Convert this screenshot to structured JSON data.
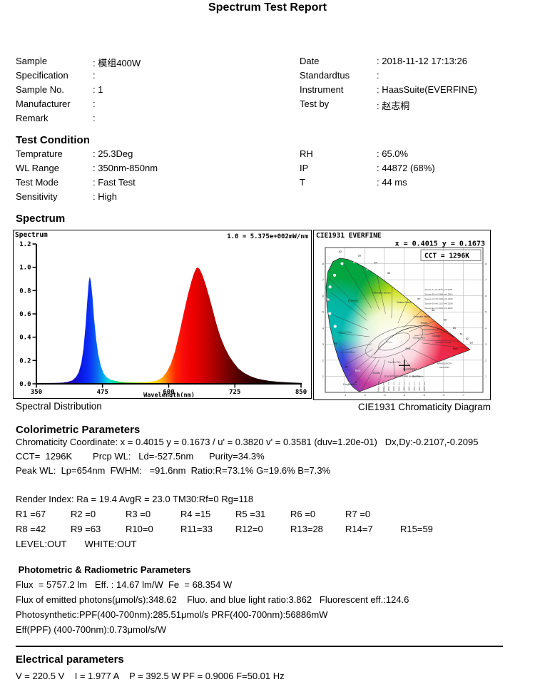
{
  "title": "Spectrum Test Report",
  "info": {
    "left": [
      {
        "label": "Sample",
        "value": ": 模组400W"
      },
      {
        "label": "Specification",
        "value": ":"
      },
      {
        "label": "Sample No.",
        "value": ": 1"
      },
      {
        "label": "Manufacturer",
        "value": ":"
      },
      {
        "label": "Remark",
        "value": ":"
      }
    ],
    "right": [
      {
        "label": "Date",
        "value": ": 2018-11-12 17:13:26"
      },
      {
        "label": "Standardtus",
        "value": ":"
      },
      {
        "label": "Instrument",
        "value": ": HaasSuite(EVERFINE)"
      },
      {
        "label": "Test by",
        "value": ": 赵志桐"
      }
    ]
  },
  "test_condition": {
    "heading": "Test Condition",
    "left": [
      {
        "label": "Temprature",
        "value": ": 25.3Deg"
      },
      {
        "label": "WL Range",
        "value": ": 350nm-850nm"
      },
      {
        "label": "Test Mode",
        "value": ": Fast Test"
      },
      {
        "label": "Sensitivity",
        "value": ": High"
      }
    ],
    "right": [
      {
        "label": "RH",
        "value": ": 65.0%"
      },
      {
        "label": "IP",
        "value": ": 44872 (68%)"
      },
      {
        "label": "T",
        "value": ": 44 ms"
      }
    ]
  },
  "spectrum_section": {
    "heading": "Spectrum",
    "left_caption": "Spectral Distribution",
    "right_caption": "CIE1931 Chromaticity Diagram"
  },
  "colorimetric": {
    "heading": "Colorimetric Parameters",
    "line1": "Chromaticity Coordinate: x = 0.4015 y = 0.1673 / u' = 0.3820 v' = 0.3581 (duv=1.20e-01)   Dx,Dy:-0.2107,-0.2095",
    "line2": "CCT=  1296K        Prcp WL:   Ld=-527.5nm      Purity=34.3%",
    "line3": "Peak WL:  Lp=654nm  FWHM:   =91.6nm  Ratio:R=73.1% G=19.6% B=7.3%",
    "render_index": "Render Index: Ra = 19.4 AvgR = 23.0 TM30:Rf=0 Rg=118",
    "r_row1": [
      "R1 =67",
      "R2 =0",
      "R3 =0",
      "R4 =15",
      "R5 =31",
      "R6 =0",
      "R7 =0"
    ],
    "r_row2": [
      "R8 =42",
      "R9 =63",
      "R10=0",
      "R11=33",
      "R12=0",
      "R13=28",
      "R14=7",
      "R15=59"
    ],
    "level_line": "LEVEL:OUT       WHITE:OUT"
  },
  "photometric": {
    "heading": " Photometric & Radiometric Parameters",
    "lines": [
      "Flux  = 5757.2 lm   Eff. : 14.67 lm/W  Fe  = 68.354 W",
      "Flux of emitted photons(μmol/s):348.62    Fluo. and blue light ratio:3.862   Fluorescent eff.:124.6",
      "Photosynthetic:PPF(400-700nm):285.51μmol/s PRF(400-700nm):56886mW",
      "Eff(PPF) (400-700nm):0.73μmol/s/W"
    ]
  },
  "electrical": {
    "heading": "Electrical parameters",
    "line1": "V = 220.5 V    I = 1.977 A    P = 392.5 W PF = 0.9006 F=50.01 Hz"
  },
  "chart_data": [
    {
      "type": "area",
      "title": "Spectrum",
      "scale_note": "1.0 = 5.375e+002mW/nm",
      "xlabel": "Wavelength(nm)",
      "x_ticks": [
        350,
        475,
        600,
        725,
        850
      ],
      "y_ticks": [
        "0.0",
        "0.2",
        "0.4",
        "0.6",
        "0.8",
        "1.0",
        "1.2"
      ],
      "xlim": [
        350,
        850
      ],
      "ylim": [
        0,
        1.2
      ],
      "peaks": {
        "blue_peak_nm": 451,
        "blue_peak_rel": 0.92,
        "red_peak_nm": 654,
        "red_peak_rel": 1.0
      },
      "points": [
        [
          350,
          0.007
        ],
        [
          370,
          0.007
        ],
        [
          385,
          0.008
        ],
        [
          400,
          0.01
        ],
        [
          410,
          0.018
        ],
        [
          418,
          0.03
        ],
        [
          425,
          0.06
        ],
        [
          430,
          0.1
        ],
        [
          435,
          0.18
        ],
        [
          439,
          0.3
        ],
        [
          443,
          0.5
        ],
        [
          446,
          0.7
        ],
        [
          449,
          0.88
        ],
        [
          451,
          0.92
        ],
        [
          453,
          0.88
        ],
        [
          456,
          0.74
        ],
        [
          459,
          0.56
        ],
        [
          463,
          0.38
        ],
        [
          467,
          0.25
        ],
        [
          472,
          0.15
        ],
        [
          477,
          0.09
        ],
        [
          483,
          0.055
        ],
        [
          490,
          0.035
        ],
        [
          498,
          0.025
        ],
        [
          508,
          0.018
        ],
        [
          520,
          0.014
        ],
        [
          535,
          0.012
        ],
        [
          550,
          0.013
        ],
        [
          562,
          0.016
        ],
        [
          572,
          0.022
        ],
        [
          580,
          0.032
        ],
        [
          588,
          0.055
        ],
        [
          596,
          0.1
        ],
        [
          604,
          0.17
        ],
        [
          612,
          0.28
        ],
        [
          620,
          0.43
        ],
        [
          628,
          0.6
        ],
        [
          636,
          0.76
        ],
        [
          643,
          0.88
        ],
        [
          648,
          0.95
        ],
        [
          652,
          0.99
        ],
        [
          655,
          1.0
        ],
        [
          659,
          0.98
        ],
        [
          664,
          0.93
        ],
        [
          670,
          0.85
        ],
        [
          677,
          0.74
        ],
        [
          684,
          0.62
        ],
        [
          691,
          0.5
        ],
        [
          698,
          0.4
        ],
        [
          706,
          0.31
        ],
        [
          714,
          0.24
        ],
        [
          723,
          0.18
        ],
        [
          732,
          0.13
        ],
        [
          742,
          0.095
        ],
        [
          753,
          0.068
        ],
        [
          765,
          0.048
        ],
        [
          778,
          0.034
        ],
        [
          792,
          0.024
        ],
        [
          808,
          0.017
        ],
        [
          825,
          0.012
        ],
        [
          850,
          0.008
        ]
      ],
      "spectral_gradient": [
        [
          350,
          "#14000f"
        ],
        [
          390,
          "#1c0050"
        ],
        [
          415,
          "#2505b0"
        ],
        [
          435,
          "#0718e8"
        ],
        [
          450,
          "#0b2ff5"
        ],
        [
          465,
          "#0a6af0"
        ],
        [
          478,
          "#00b2f0"
        ],
        [
          488,
          "#00ded2"
        ],
        [
          498,
          "#00d88c"
        ],
        [
          512,
          "#2cc52c"
        ],
        [
          535,
          "#85d400"
        ],
        [
          558,
          "#d8e000"
        ],
        [
          575,
          "#ffd800"
        ],
        [
          590,
          "#ffa000"
        ],
        [
          602,
          "#ff5a00"
        ],
        [
          614,
          "#ff2200"
        ],
        [
          628,
          "#fa0b0b"
        ],
        [
          645,
          "#ee0000"
        ],
        [
          662,
          "#d90000"
        ],
        [
          680,
          "#b70000"
        ],
        [
          700,
          "#8e0000"
        ],
        [
          725,
          "#5d0000"
        ],
        [
          755,
          "#320000"
        ],
        [
          790,
          "#160000"
        ],
        [
          850,
          "#000000"
        ]
      ]
    },
    {
      "type": "chromaticity",
      "title": "CIE1931  EVERFINE",
      "coords_label": "x = 0.4015 y = 0.1673",
      "cct_label": "CCT = 1296K",
      "marker": {
        "x": 0.4015,
        "y": 0.1673
      },
      "xlim": [
        0,
        0.8
      ],
      "ylim": [
        0,
        0.9
      ],
      "grid_step": 0.1,
      "locus": [
        [
          0.1741,
          0.005
        ],
        [
          0.1658,
          0.009
        ],
        [
          0.1566,
          0.0177
        ],
        [
          0.144,
          0.0297
        ],
        [
          0.1355,
          0.0399
        ],
        [
          0.1241,
          0.0578
        ],
        [
          0.1096,
          0.0868
        ],
        [
          0.0913,
          0.1327
        ],
        [
          0.0687,
          0.2007
        ],
        [
          0.0454,
          0.295
        ],
        [
          0.0235,
          0.4127
        ],
        [
          0.0082,
          0.5384
        ],
        [
          0.0039,
          0.6548
        ],
        [
          0.0139,
          0.7502
        ],
        [
          0.0389,
          0.812
        ],
        [
          0.0743,
          0.8338
        ],
        [
          0.1142,
          0.8262
        ],
        [
          0.1547,
          0.8059
        ],
        [
          0.1929,
          0.7816
        ],
        [
          0.2296,
          0.7543
        ],
        [
          0.2658,
          0.7243
        ],
        [
          0.3016,
          0.6923
        ],
        [
          0.3373,
          0.6589
        ],
        [
          0.3731,
          0.6245
        ],
        [
          0.4087,
          0.5896
        ],
        [
          0.4441,
          0.5547
        ],
        [
          0.4788,
          0.5202
        ],
        [
          0.5125,
          0.4866
        ],
        [
          0.5448,
          0.4544
        ],
        [
          0.5752,
          0.4242
        ],
        [
          0.6029,
          0.3965
        ],
        [
          0.627,
          0.3725
        ],
        [
          0.6482,
          0.3514
        ],
        [
          0.6658,
          0.334
        ],
        [
          0.6801,
          0.3197
        ],
        [
          0.6915,
          0.3083
        ],
        [
          0.7006,
          0.2993
        ],
        [
          0.7079,
          0.292
        ],
        [
          0.719,
          0.2809
        ],
        [
          0.726,
          0.274
        ],
        [
          0.73,
          0.27
        ],
        [
          0.7347,
          0.2653
        ]
      ],
      "blobs": [
        {
          "x": 0.28,
          "y": 0.62,
          "r": 0.52,
          "c": "#00a43e"
        },
        {
          "x": 0.1,
          "y": 0.8,
          "r": 0.28,
          "c": "#00a43e"
        },
        {
          "x": 0.06,
          "y": 0.42,
          "r": 0.24,
          "c": "#00b7b2"
        },
        {
          "x": 0.44,
          "y": 0.48,
          "r": 0.3,
          "c": "#f0ea00"
        },
        {
          "x": 0.56,
          "y": 0.38,
          "r": 0.2,
          "c": "#ff9000"
        },
        {
          "x": 0.7,
          "y": 0.28,
          "r": 0.28,
          "c": "#e81620"
        },
        {
          "x": 0.15,
          "y": 0.02,
          "r": 0.2,
          "c": "#2a2ad8"
        },
        {
          "x": 0.1,
          "y": 0.14,
          "r": 0.16,
          "c": "#3540e0"
        },
        {
          "x": 0.33,
          "y": 0.09,
          "r": 0.26,
          "c": "#e03a90"
        },
        {
          "x": 0.52,
          "y": 0.17,
          "r": 0.22,
          "c": "#ee2a55"
        },
        {
          "x": 0.335,
          "y": 0.33,
          "r": 0.26,
          "c": "#ffffff"
        }
      ],
      "line_origin": [
        0.334,
        0.33
      ],
      "region_lines": [
        [
          0.03,
          0.62
        ],
        [
          0.018,
          0.71
        ],
        [
          0.085,
          0.815
        ],
        [
          0.185,
          0.788
        ],
        [
          0.263,
          0.726
        ],
        [
          0.34,
          0.655
        ],
        [
          0.42,
          0.577
        ],
        [
          0.49,
          0.51
        ],
        [
          0.557,
          0.445
        ],
        [
          0.623,
          0.38
        ],
        [
          0.682,
          0.318
        ],
        [
          0.728,
          0.272
        ],
        [
          0.6,
          0.175
        ],
        [
          0.47,
          0.09
        ],
        [
          0.36,
          0.035
        ],
        [
          0.26,
          0.012
        ],
        [
          0.185,
          0.016
        ],
        [
          0.14,
          0.042
        ],
        [
          0.112,
          0.095
        ],
        [
          0.098,
          0.17
        ],
        [
          0.085,
          0.26
        ],
        [
          0.058,
          0.37
        ],
        [
          0.042,
          0.48
        ]
      ],
      "planckian": [
        [
          0.653,
          0.344
        ],
        [
          0.585,
          0.393
        ],
        [
          0.527,
          0.413
        ],
        [
          0.476,
          0.413
        ],
        [
          0.437,
          0.404
        ],
        [
          0.4,
          0.39
        ],
        [
          0.368,
          0.373
        ],
        [
          0.345,
          0.352
        ],
        [
          0.322,
          0.332
        ],
        [
          0.306,
          0.312
        ],
        [
          0.288,
          0.293
        ],
        [
          0.272,
          0.273
        ],
        [
          0.258,
          0.252
        ],
        [
          0.246,
          0.235
        ]
      ],
      "ellipses": [
        {
          "cx": 0.35,
          "cy": 0.315,
          "rx": 0.155,
          "ry": 0.075,
          "rot": -22
        },
        {
          "cx": 0.35,
          "cy": 0.315,
          "rx": 0.085,
          "ry": 0.04,
          "rot": -22
        }
      ],
      "white_dots": [
        [
          0.085,
          0.8
        ],
        [
          0.047,
          0.728
        ],
        [
          0.024,
          0.655
        ],
        [
          0.013,
          0.575
        ],
        [
          0.022,
          0.49
        ],
        [
          0.148,
          0.812
        ],
        [
          0.215,
          0.768
        ],
        [
          0.05,
          0.41
        ]
      ],
      "labels": [
        {
          "t": "Green",
          "x": 0.14,
          "y": 0.56,
          "s": 5,
          "c": "#1a4a1a"
        },
        {
          "t": "Yellowish Green",
          "x": 0.285,
          "y": 0.615,
          "s": 3.6,
          "c": "#233"
        },
        {
          "t": "Yellow Green",
          "x": 0.4,
          "y": 0.555,
          "s": 3.6,
          "c": "#233"
        },
        {
          "t": "Greenish Yellow",
          "x": 0.49,
          "y": 0.465,
          "s": 3.3,
          "c": "#233"
        },
        {
          "t": "Yellow",
          "x": 0.5,
          "y": 0.425,
          "s": 3.4,
          "c": "#233"
        },
        {
          "t": "Yellowish Orange",
          "x": 0.535,
          "y": 0.385,
          "s": 3.1,
          "c": "#233"
        },
        {
          "t": "Orange",
          "x": 0.565,
          "y": 0.345,
          "s": 3.4,
          "c": "#233"
        },
        {
          "t": "Reddish Orange",
          "x": 0.6,
          "y": 0.305,
          "s": 3.1,
          "c": "#233"
        },
        {
          "t": "Red",
          "x": 0.66,
          "y": 0.265,
          "s": 3.8,
          "c": "#400"
        },
        {
          "t": "Orange Pink",
          "x": 0.475,
          "y": 0.335,
          "s": 3.1,
          "c": "#233"
        },
        {
          "t": "Pink",
          "x": 0.42,
          "y": 0.265,
          "s": 3.6,
          "c": "#233"
        },
        {
          "t": "Purplish Pink",
          "x": 0.35,
          "y": 0.185,
          "s": 3.1,
          "c": "#233"
        },
        {
          "t": "Purplish Red",
          "x": 0.43,
          "y": 0.14,
          "s": 3.3,
          "c": "#233"
        },
        {
          "t": "Red Purple",
          "x": 0.47,
          "y": 0.095,
          "s": 3.1,
          "c": "#233"
        },
        {
          "t": "Purple",
          "x": 0.26,
          "y": 0.115,
          "s": 3.6,
          "c": "#233"
        },
        {
          "t": "Purplish Blue",
          "x": 0.125,
          "y": 0.045,
          "s": 3.2,
          "c": "#233"
        },
        {
          "t": "Blue",
          "x": 0.165,
          "y": 0.13,
          "s": 3.8,
          "c": "#eef"
        },
        {
          "t": "Greenish Blue",
          "x": 0.115,
          "y": 0.245,
          "s": 3.1,
          "c": "#133"
        },
        {
          "t": "Bluish Green",
          "x": 0.105,
          "y": 0.37,
          "s": 3.1,
          "c": "#133"
        },
        {
          "t": "White",
          "x": 0.325,
          "y": 0.305,
          "s": 3.2,
          "c": "#999"
        },
        {
          "t": "WAVELENGTH",
          "x": 0.605,
          "y": 0.175,
          "s": 3.0,
          "c": "#333"
        },
        {
          "t": "MICRONS",
          "x": 0.605,
          "y": 0.15,
          "s": 3.0,
          "c": "#333"
        },
        {
          "t": "COLOR TEMPERATURE IN KELVINS",
          "x": 0.39,
          "y": 0.095,
          "s": 3.0,
          "c": "#333"
        }
      ],
      "wavelength_labels": [
        {
          "t": "52",
          "x": 0.068,
          "y": 0.868
        },
        {
          "t": "53",
          "x": 0.165,
          "y": 0.845
        },
        {
          "t": "54",
          "x": 0.248,
          "y": 0.8
        },
        {
          "t": "55",
          "x": 0.315,
          "y": 0.735
        },
        {
          "t": "57",
          "x": 0.468,
          "y": 0.575
        },
        {
          "t": "58",
          "x": 0.54,
          "y": 0.505
        },
        {
          "t": "59",
          "x": 0.6,
          "y": 0.445
        },
        {
          "t": "60",
          "x": 0.648,
          "y": 0.395
        },
        {
          "t": "61",
          "x": 0.683,
          "y": 0.358
        },
        {
          "t": "62",
          "x": 0.712,
          "y": 0.328
        },
        {
          "t": "63",
          "x": 0.733,
          "y": 0.303
        },
        {
          "t": "50",
          "x": 0.003,
          "y": 0.565
        },
        {
          "t": "49",
          "x": 0.045,
          "y": 0.3
        },
        {
          "t": "48",
          "x": 0.098,
          "y": 0.152
        },
        {
          "t": "47",
          "x": 0.148,
          "y": 0.058
        }
      ],
      "legend": [
        "Source A x=0.4476 y=0.4075",
        "Source B x=0.3484 y=0.3516",
        "Source C x=0.3101 y=0.3162",
        "Source D x=0.3127 y=0.3290",
        "Source E x=0.3333 y=0.3333"
      ],
      "legend_pos": [
        0.505,
        0.635
      ],
      "kelvin_scale": {
        "labels": [
          "24000",
          "10000",
          "8000",
          "6000",
          "5000",
          "4500",
          "4000",
          "3500",
          "3200",
          "2900"
        ],
        "x_start": 0.27,
        "x_step": 0.026,
        "y": 0.055
      }
    }
  ]
}
